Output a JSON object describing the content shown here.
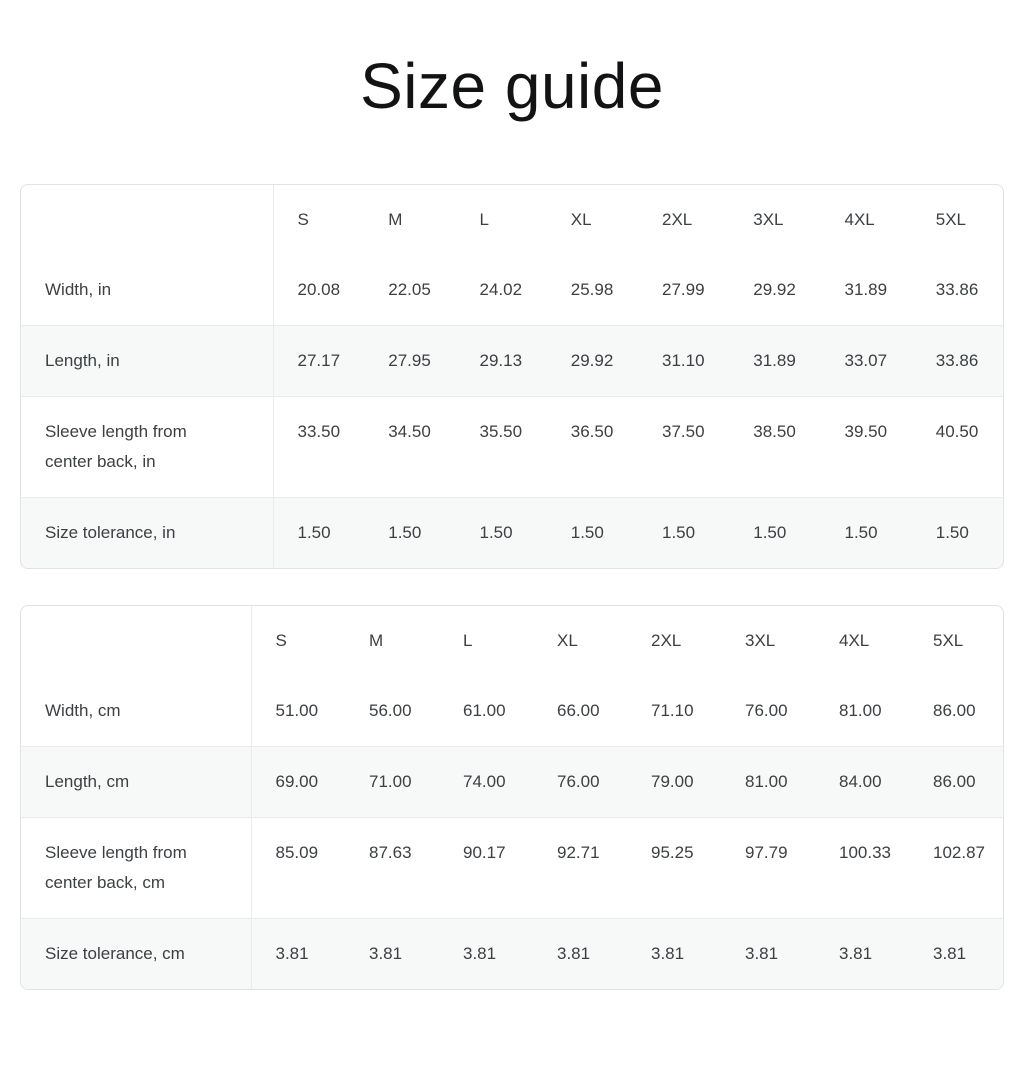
{
  "page": {
    "title": "Size guide"
  },
  "colors": {
    "background": "#ffffff",
    "text": "#3c4043",
    "title_text": "#121314",
    "table_border": "#e0e2e5",
    "row_divider": "#e9ebed",
    "row_alt_background": "#f7f8f8"
  },
  "tables": [
    {
      "name": "size-table-inches",
      "unit": "in",
      "sizes": [
        "S",
        "M",
        "L",
        "XL",
        "2XL",
        "3XL",
        "4XL",
        "5XL"
      ],
      "rows": [
        {
          "label": "Width, in",
          "values": [
            "20.08",
            "22.05",
            "24.02",
            "25.98",
            "27.99",
            "29.92",
            "31.89",
            "33.86"
          ]
        },
        {
          "label": "Length, in",
          "values": [
            "27.17",
            "27.95",
            "29.13",
            "29.92",
            "31.10",
            "31.89",
            "33.07",
            "33.86"
          ]
        },
        {
          "label": "Sleeve length from center back, in",
          "values": [
            "33.50",
            "34.50",
            "35.50",
            "36.50",
            "37.50",
            "38.50",
            "39.50",
            "40.50"
          ]
        },
        {
          "label": "Size tolerance, in",
          "values": [
            "1.50",
            "1.50",
            "1.50",
            "1.50",
            "1.50",
            "1.50",
            "1.50",
            "1.50"
          ]
        }
      ]
    },
    {
      "name": "size-table-centimeters",
      "unit": "cm",
      "sizes": [
        "S",
        "M",
        "L",
        "XL",
        "2XL",
        "3XL",
        "4XL",
        "5XL"
      ],
      "rows": [
        {
          "label": "Width, cm",
          "values": [
            "51.00",
            "56.00",
            "61.00",
            "66.00",
            "71.10",
            "76.00",
            "81.00",
            "86.00"
          ]
        },
        {
          "label": "Length, cm",
          "values": [
            "69.00",
            "71.00",
            "74.00",
            "76.00",
            "79.00",
            "81.00",
            "84.00",
            "86.00"
          ]
        },
        {
          "label": "Sleeve length from center back, cm",
          "values": [
            "85.09",
            "87.63",
            "90.17",
            "92.71",
            "95.25",
            "97.79",
            "100.33",
            "102.87"
          ]
        },
        {
          "label": "Size tolerance, cm",
          "values": [
            "3.81",
            "3.81",
            "3.81",
            "3.81",
            "3.81",
            "3.81",
            "3.81",
            "3.81"
          ]
        }
      ]
    }
  ]
}
